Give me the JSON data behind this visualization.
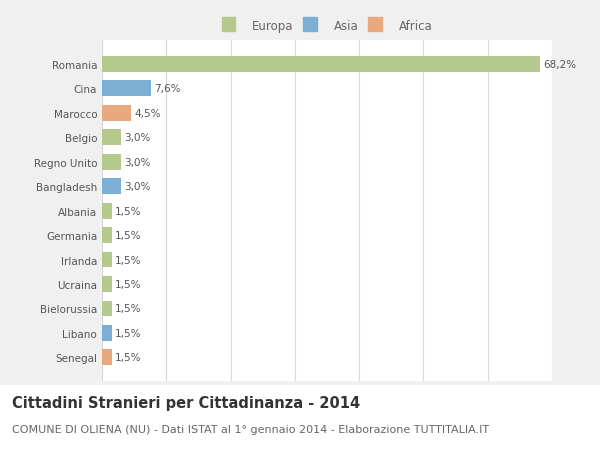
{
  "categories": [
    "Senegal",
    "Libano",
    "Bielorussia",
    "Ucraina",
    "Irlanda",
    "Germania",
    "Albania",
    "Bangladesh",
    "Regno Unito",
    "Belgio",
    "Marocco",
    "Cina",
    "Romania"
  ],
  "values": [
    1.5,
    1.5,
    1.5,
    1.5,
    1.5,
    1.5,
    1.5,
    3.0,
    3.0,
    3.0,
    4.5,
    7.6,
    68.2
  ],
  "labels": [
    "1,5%",
    "1,5%",
    "1,5%",
    "1,5%",
    "1,5%",
    "1,5%",
    "1,5%",
    "3,0%",
    "3,0%",
    "3,0%",
    "4,5%",
    "7,6%",
    "68,2%"
  ],
  "colors": [
    "#e8a97e",
    "#7bafd4",
    "#b5c98e",
    "#b5c98e",
    "#b5c98e",
    "#b5c98e",
    "#b5c98e",
    "#7bafd4",
    "#b5c98e",
    "#b5c98e",
    "#e8a97e",
    "#7bafd4",
    "#b5c98e"
  ],
  "legend_labels": [
    "Europa",
    "Asia",
    "Africa"
  ],
  "legend_colors": [
    "#b5c98e",
    "#7bafd4",
    "#e8a97e"
  ],
  "title": "Cittadini Stranieri per Cittadinanza - 2014",
  "subtitle": "COMUNE DI OLIENA (NU) - Dati ISTAT al 1° gennaio 2014 - Elaborazione TUTTITALIA.IT",
  "xlim": [
    0,
    70
  ],
  "xticks": [
    0,
    10,
    20,
    30,
    40,
    50,
    60,
    70
  ],
  "chart_bg_color": "#f0f0f0",
  "plot_bg_color": "#ffffff",
  "bottom_bg_color": "#ffffff",
  "grid_color": "#d8d8d8",
  "title_fontsize": 10.5,
  "subtitle_fontsize": 8,
  "label_fontsize": 7.5,
  "tick_fontsize": 7.5,
  "legend_fontsize": 8.5
}
